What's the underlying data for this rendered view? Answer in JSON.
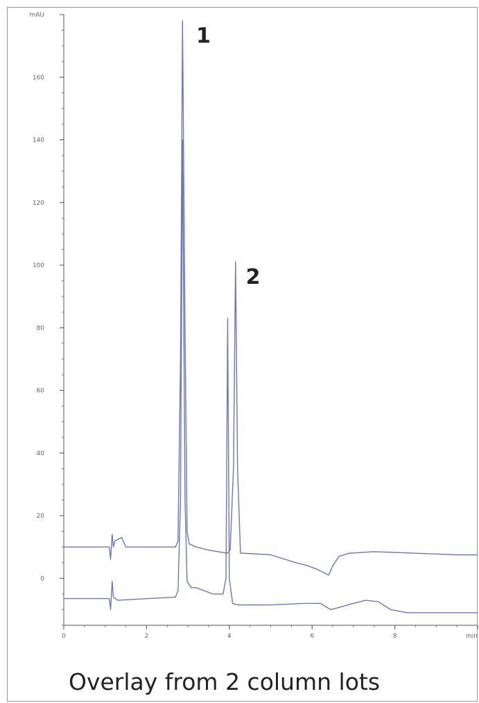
{
  "caption": "Overlay from 2 column lots",
  "chart_data": {
    "type": "line",
    "title": "",
    "xlabel": "",
    "ylabel": "mAU",
    "xlim": [
      0,
      10
    ],
    "ylim": [
      -15,
      180
    ],
    "x_ticks": [
      0,
      2,
      4,
      6,
      8,
      10
    ],
    "x_tick_labels": [
      "0",
      "2",
      "4",
      "6",
      "8",
      "min"
    ],
    "y_ticks": [
      0,
      20,
      40,
      60,
      80,
      100,
      120,
      140,
      160,
      180
    ],
    "y_tick_labels": [
      "0",
      "20",
      "40",
      "60",
      "80",
      "100",
      "120",
      "140",
      "160",
      "mAU"
    ],
    "color": "#6a78b8",
    "series": [
      {
        "x": [
          0,
          1.1,
          1.13,
          1.17,
          1.2,
          1.24,
          1.4,
          1.5,
          2.7,
          2.76,
          2.82,
          2.87,
          2.93,
          2.98,
          3.03,
          3.2,
          3.5,
          3.95,
          4.02,
          4.1,
          4.15,
          4.2,
          4.27,
          4.35,
          5,
          5.6,
          5.9,
          6.1,
          6.4,
          6.5,
          6.65,
          6.9,
          7.5,
          8.5,
          9.5,
          10
        ],
        "y": [
          10,
          10,
          6,
          14,
          10,
          12,
          13,
          10,
          10,
          12,
          70,
          178,
          80,
          15,
          11,
          10,
          9,
          8,
          9,
          35,
          101,
          35,
          8,
          8,
          7.5,
          5,
          4,
          3,
          1,
          4,
          7,
          8,
          8.5,
          8,
          7.5,
          7.5
        ]
      },
      {
        "x": [
          0,
          1.1,
          1.13,
          1.17,
          1.2,
          1.3,
          2.7,
          2.76,
          2.82,
          2.87,
          2.93,
          2.98,
          3.08,
          3.2,
          3.6,
          3.85,
          3.92,
          3.96,
          4.0,
          4.08,
          4.2,
          4.6,
          5,
          5.8,
          6.2,
          6.45,
          6.6,
          7,
          7.3,
          7.6,
          7.9,
          8.3,
          9.5,
          10
        ],
        "y": [
          -6.5,
          -6.5,
          -10,
          -1,
          -6,
          -7,
          -6,
          -4,
          25,
          140,
          25,
          -1,
          -3,
          -3,
          -5,
          -5,
          0,
          83,
          0,
          -8,
          -8.5,
          -8.5,
          -8.5,
          -8,
          -8,
          -10,
          -9.5,
          -8,
          -7,
          -7.5,
          -10,
          -11,
          -11,
          -11
        ]
      }
    ],
    "annotations": [
      {
        "text": "1",
        "x": 3.2,
        "y": 171
      },
      {
        "text": "2",
        "x": 4.4,
        "y": 94
      }
    ]
  }
}
